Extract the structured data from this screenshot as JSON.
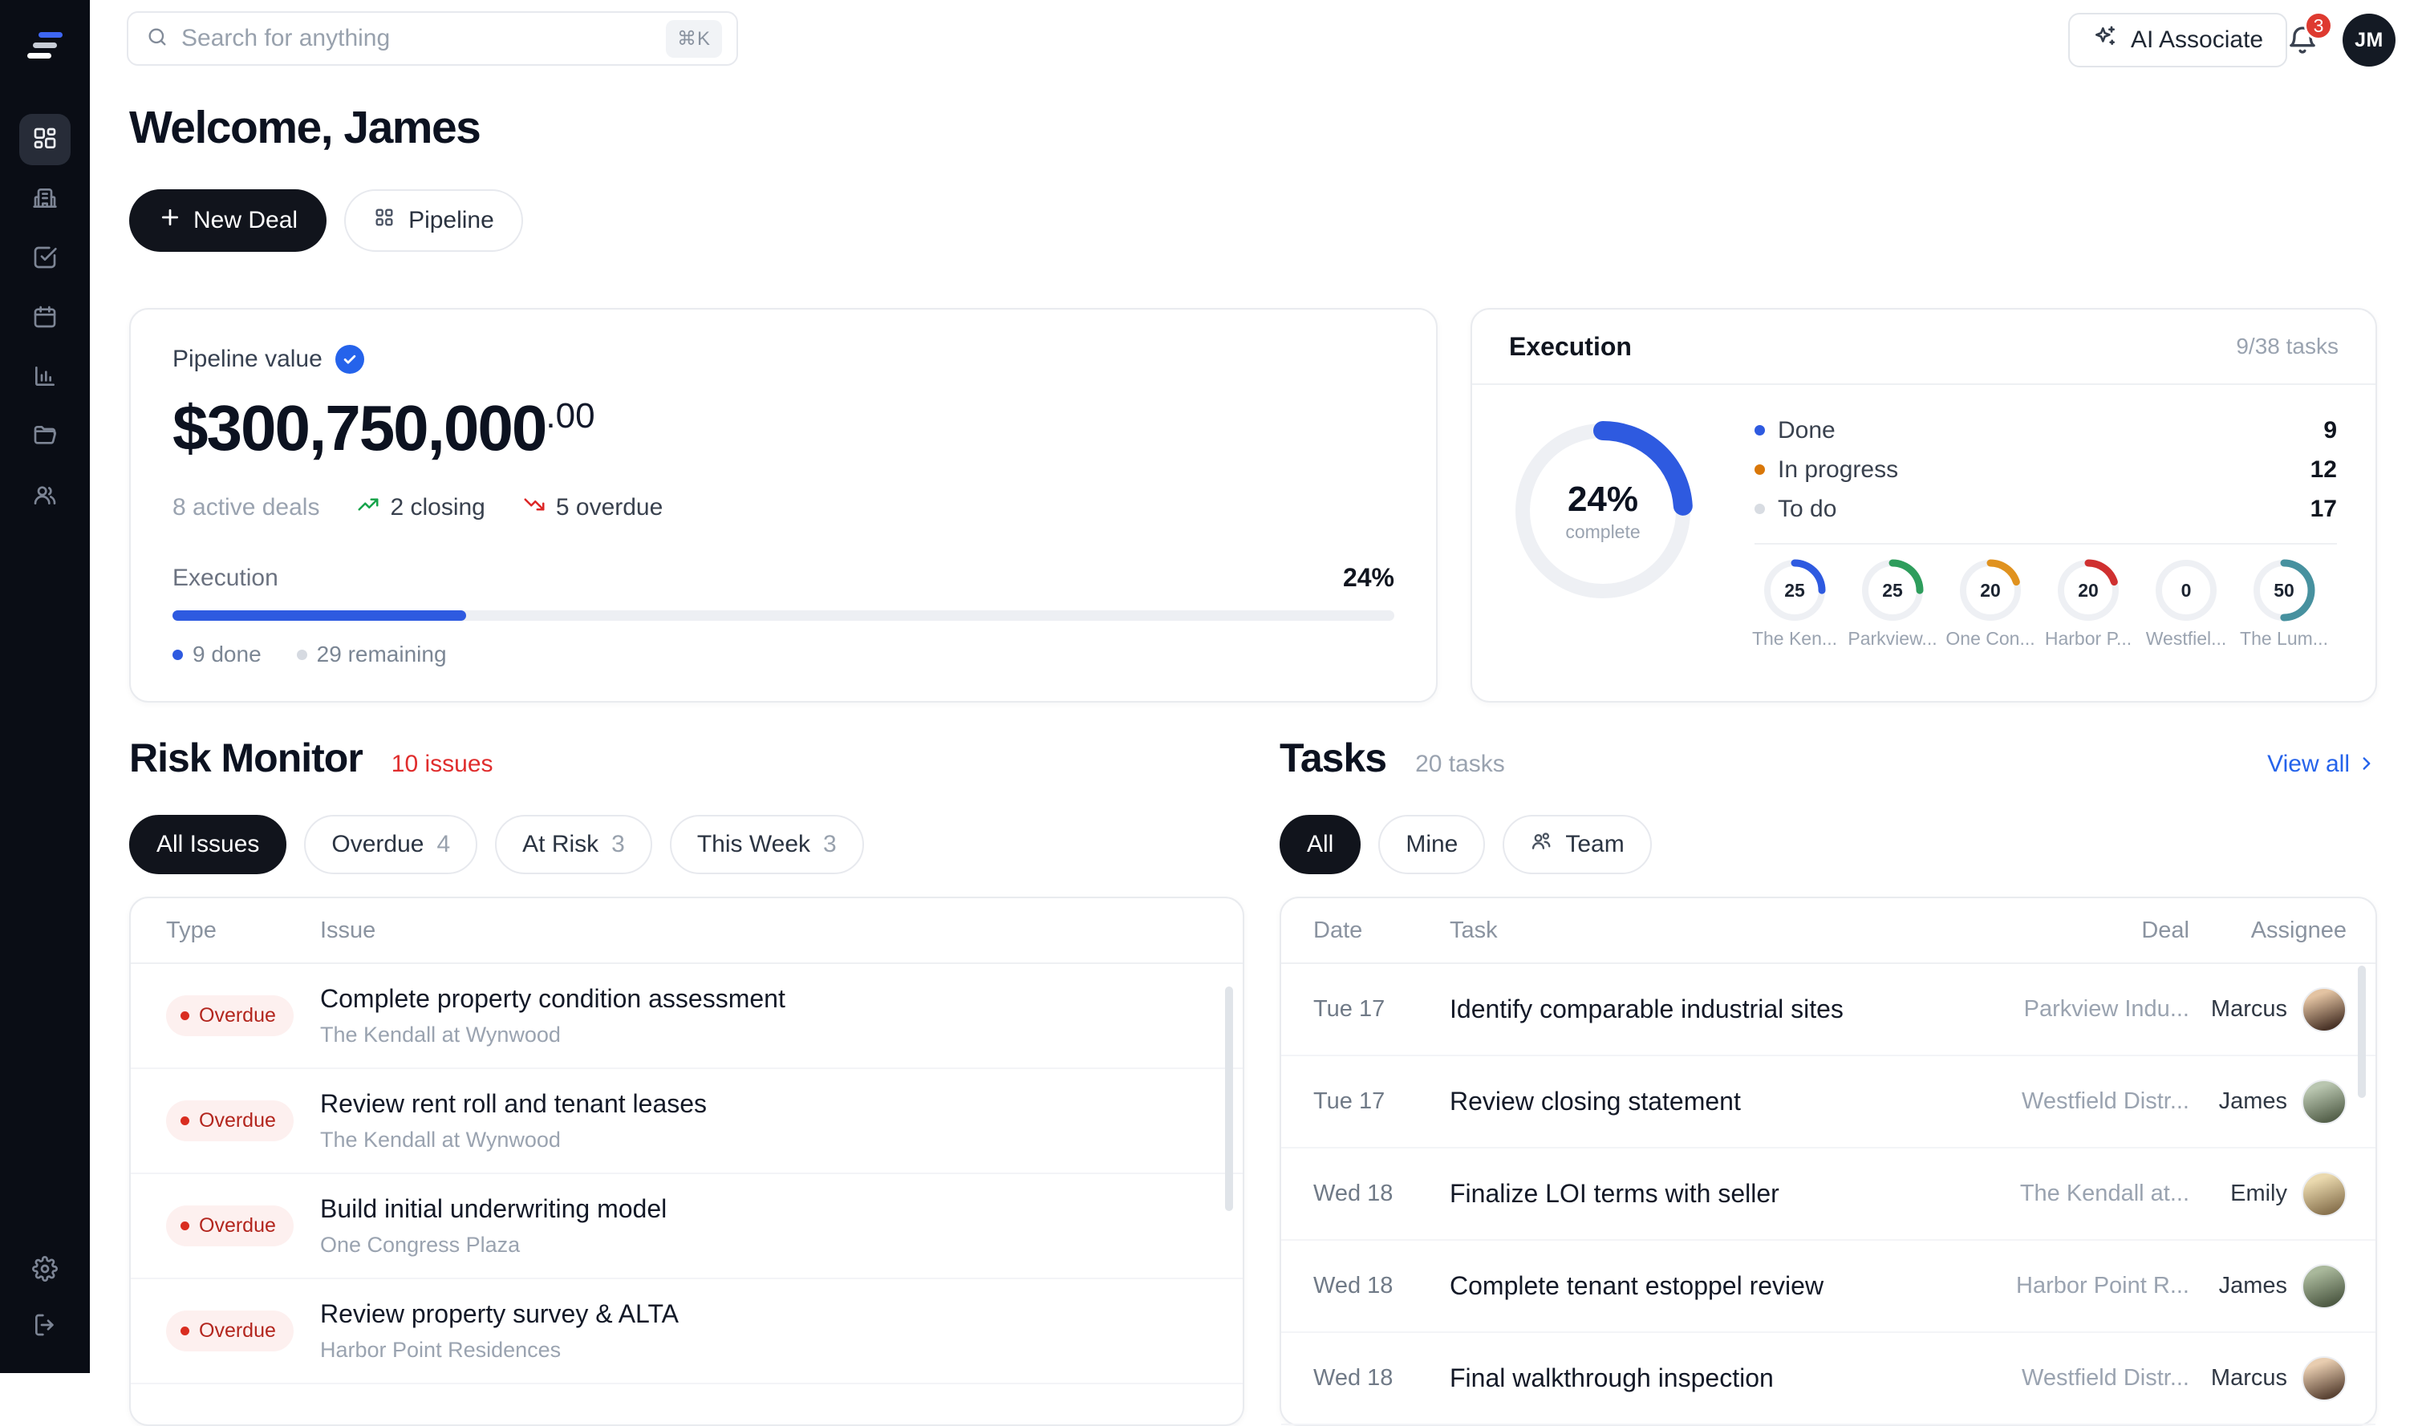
{
  "colors": {
    "accent": "#2e5ae0",
    "danger": "#d92d20",
    "sidebar_bg": "#0a0d15"
  },
  "topbar": {
    "search_placeholder": "Search for anything",
    "search_shortcut": "⌘K",
    "ai_button_label": "AI Associate",
    "notification_count": "3",
    "avatar_initials": "JM"
  },
  "sidebar": {
    "items": [
      "dashboard",
      "deals-building",
      "tasks-check",
      "calendar",
      "analytics-chart",
      "documents-folder",
      "contacts-people"
    ],
    "bottom_items": [
      "settings-gear",
      "logout"
    ]
  },
  "header": {
    "welcome": "Welcome, James",
    "new_deal_label": "New Deal",
    "pipeline_label": "Pipeline"
  },
  "pipeline_card": {
    "label": "Pipeline value",
    "amount_main": "$300,750,000",
    "amount_cents": ".00",
    "active_deals": "8 active deals",
    "closing": "2 closing",
    "overdue": "5 overdue",
    "execution_label": "Execution",
    "execution_pct_label": "24%",
    "progress_pct": 24,
    "done_label": "9 done",
    "remaining_label": "29 remaining"
  },
  "execution_card": {
    "title": "Execution",
    "tasks_summary": "9/38 tasks",
    "donut": {
      "pct": 24,
      "pct_label": "24%",
      "caption": "complete",
      "color": "#2e5ae0",
      "track": "#eef0f4"
    },
    "legend": [
      {
        "label": "Done",
        "value": "9",
        "color": "#2e5ae0"
      },
      {
        "label": "In progress",
        "value": "12",
        "color": "#d97708"
      },
      {
        "label": "To do",
        "value": "17",
        "color": "#d8dce2"
      }
    ],
    "deal_rings": [
      {
        "value": "25",
        "pct": 25,
        "color": "#2e5ae0",
        "label": "The Ken..."
      },
      {
        "value": "25",
        "pct": 25,
        "color": "#2e9d5c",
        "label": "Parkview..."
      },
      {
        "value": "20",
        "pct": 20,
        "color": "#e0921f",
        "label": "One Con..."
      },
      {
        "value": "20",
        "pct": 20,
        "color": "#cf3030",
        "label": "Harbor P..."
      },
      {
        "value": "0",
        "pct": 0,
        "color": "#9ca3af",
        "label": "Westfiel..."
      },
      {
        "value": "50",
        "pct": 50,
        "color": "#47919f",
        "label": "The Lum..."
      }
    ]
  },
  "risk": {
    "title": "Risk Monitor",
    "count_label": "10 issues",
    "filters": [
      {
        "label": "All Issues",
        "selected": true
      },
      {
        "label": "Overdue",
        "count": "4"
      },
      {
        "label": "At Risk",
        "count": "3"
      },
      {
        "label": "This Week",
        "count": "3"
      }
    ],
    "columns": [
      "Type",
      "Issue"
    ],
    "rows": [
      {
        "badge": "Overdue",
        "title": "Complete property condition assessment",
        "deal": "The Kendall at Wynwood"
      },
      {
        "badge": "Overdue",
        "title": "Review rent roll and tenant leases",
        "deal": "The Kendall at Wynwood"
      },
      {
        "badge": "Overdue",
        "title": "Build initial underwriting model",
        "deal": "One Congress Plaza"
      },
      {
        "badge": "Overdue",
        "title": "Review property survey & ALTA",
        "deal": "Harbor Point Residences"
      }
    ]
  },
  "tasks": {
    "title": "Tasks",
    "count_label": "20 tasks",
    "view_all_label": "View all",
    "filters": [
      {
        "label": "All",
        "selected": true
      },
      {
        "label": "Mine"
      },
      {
        "label": "Team",
        "icon": "users"
      }
    ],
    "columns": [
      "Date",
      "Task",
      "Deal",
      "Assignee"
    ],
    "rows": [
      {
        "date": "Tue 17",
        "task": "Identify comparable industrial sites",
        "deal": "Parkview Indu...",
        "assignee": "Marcus",
        "avatar": [
          "#e3c3a2",
          "#4a3428"
        ]
      },
      {
        "date": "Tue 17",
        "task": "Review closing statement",
        "deal": "Westfield Distr...",
        "assignee": "James",
        "avatar": [
          "#b9c6b0",
          "#56624c"
        ]
      },
      {
        "date": "Wed 18",
        "task": "Finalize LOI terms with seller",
        "deal": "The Kendall at...",
        "assignee": "Emily",
        "avatar": [
          "#ead9ae",
          "#8a7450"
        ]
      },
      {
        "date": "Wed 18",
        "task": "Complete tenant estoppel review",
        "deal": "Harbor Point R...",
        "assignee": "James",
        "avatar": [
          "#a9b89b",
          "#4f5b45"
        ]
      },
      {
        "date": "Wed 18",
        "task": "Final walkthrough inspection",
        "deal": "Westfield Distr...",
        "assignee": "Marcus",
        "avatar": [
          "#e8cdb0",
          "#5a4334"
        ]
      }
    ]
  }
}
